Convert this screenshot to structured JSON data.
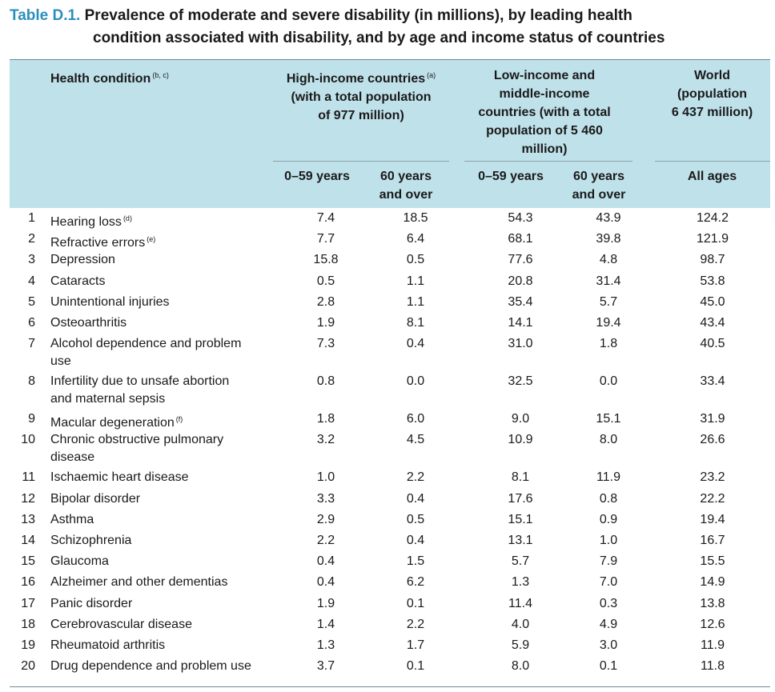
{
  "title": {
    "label": "Table D.1.",
    "line1": "Prevalence of moderate and severe disability (in millions), by leading health",
    "line2": "condition associated with disability, and by age and income status of countries"
  },
  "header": {
    "health_condition": "Health condition",
    "health_condition_note": "(b, c)",
    "high_income": "High-income countries",
    "high_income_note": "(a)",
    "high_income_line2": "(with a total population",
    "high_income_line3": "of 977 million)",
    "low_income_l1": "Low-income and",
    "low_income_l2": "middle-income",
    "low_income_l3": "countries (with a total",
    "low_income_l4": "population of 5 460",
    "low_income_l5": "million)",
    "world_l1": "World",
    "world_l2": "(population",
    "world_l3": "6 437 million)",
    "age_young": "0–59 years",
    "age_old_l1": "60 years",
    "age_old_l2": "and over",
    "all_ages": "All ages"
  },
  "rows": [
    {
      "rank": "1",
      "condition": "Hearing loss",
      "note": "(d)",
      "values": [
        "7.4",
        "18.5",
        "54.3",
        "43.9",
        "124.2"
      ]
    },
    {
      "rank": "2",
      "condition": "Refractive errors",
      "note": "(e)",
      "values": [
        "7.7",
        "6.4",
        "68.1",
        "39.8",
        "121.9"
      ]
    },
    {
      "rank": "3",
      "condition": "Depression",
      "note": "",
      "values": [
        "15.8",
        "0.5",
        "77.6",
        "4.8",
        "98.7"
      ]
    },
    {
      "rank": "4",
      "condition": "Cataracts",
      "note": "",
      "values": [
        "0.5",
        "1.1",
        "20.8",
        "31.4",
        "53.8"
      ]
    },
    {
      "rank": "5",
      "condition": "Unintentional injuries",
      "note": "",
      "values": [
        "2.8",
        "1.1",
        "35.4",
        "5.7",
        "45.0"
      ]
    },
    {
      "rank": "6",
      "condition": "Osteoarthritis",
      "note": "",
      "values": [
        "1.9",
        "8.1",
        "14.1",
        "19.4",
        "43.4"
      ]
    },
    {
      "rank": "7",
      "condition": "Alcohol dependence and problem",
      "condition2": "use",
      "note": "",
      "values": [
        "7.3",
        "0.4",
        "31.0",
        "1.8",
        "40.5"
      ]
    },
    {
      "rank": "8",
      "condition": "Infertility due to unsafe abortion",
      "condition2": "and maternal sepsis",
      "note": "",
      "values": [
        "0.8",
        "0.0",
        "32.5",
        "0.0",
        "33.4"
      ]
    },
    {
      "rank": "9",
      "condition": "Macular degeneration",
      "note": "(f)",
      "values": [
        "1.8",
        "6.0",
        "9.0",
        "15.1",
        "31.9"
      ]
    },
    {
      "rank": "10",
      "condition": "Chronic obstructive pulmonary",
      "condition2": "disease",
      "note": "",
      "values": [
        "3.2",
        "4.5",
        "10.9",
        "8.0",
        "26.6"
      ]
    },
    {
      "rank": "11",
      "condition": "Ischaemic heart disease",
      "note": "",
      "values": [
        "1.0",
        "2.2",
        "8.1",
        "11.9",
        "23.2"
      ]
    },
    {
      "rank": "12",
      "condition": "Bipolar disorder",
      "note": "",
      "values": [
        "3.3",
        "0.4",
        "17.6",
        "0.8",
        "22.2"
      ]
    },
    {
      "rank": "13",
      "condition": "Asthma",
      "note": "",
      "values": [
        "2.9",
        "0.5",
        "15.1",
        "0.9",
        "19.4"
      ]
    },
    {
      "rank": "14",
      "condition": "Schizophrenia",
      "note": "",
      "values": [
        "2.2",
        "0.4",
        "13.1",
        "1.0",
        "16.7"
      ]
    },
    {
      "rank": "15",
      "condition": "Glaucoma",
      "note": "",
      "values": [
        "0.4",
        "1.5",
        "5.7",
        "7.9",
        "15.5"
      ]
    },
    {
      "rank": "16",
      "condition": "Alzheimer and other dementias",
      "note": "",
      "values": [
        "0.4",
        "6.2",
        "1.3",
        "7.0",
        "14.9"
      ]
    },
    {
      "rank": "17",
      "condition": "Panic disorder",
      "note": "",
      "values": [
        "1.9",
        "0.1",
        "11.4",
        "0.3",
        "13.8"
      ]
    },
    {
      "rank": "18",
      "condition": "Cerebrovascular disease",
      "note": "",
      "values": [
        "1.4",
        "2.2",
        "4.0",
        "4.9",
        "12.6"
      ]
    },
    {
      "rank": "19",
      "condition": "Rheumatoid arthritis",
      "note": "",
      "values": [
        "1.3",
        "1.7",
        "5.9",
        "3.0",
        "11.9"
      ]
    },
    {
      "rank": "20",
      "condition": "Drug dependence and problem use",
      "note": "",
      "values": [
        "3.7",
        "0.1",
        "8.0",
        "0.1",
        "11.8"
      ]
    }
  ],
  "colors": {
    "title_label": "#2a8fbd",
    "header_band": "#bfe1ea",
    "rule": "#6d8a93"
  }
}
